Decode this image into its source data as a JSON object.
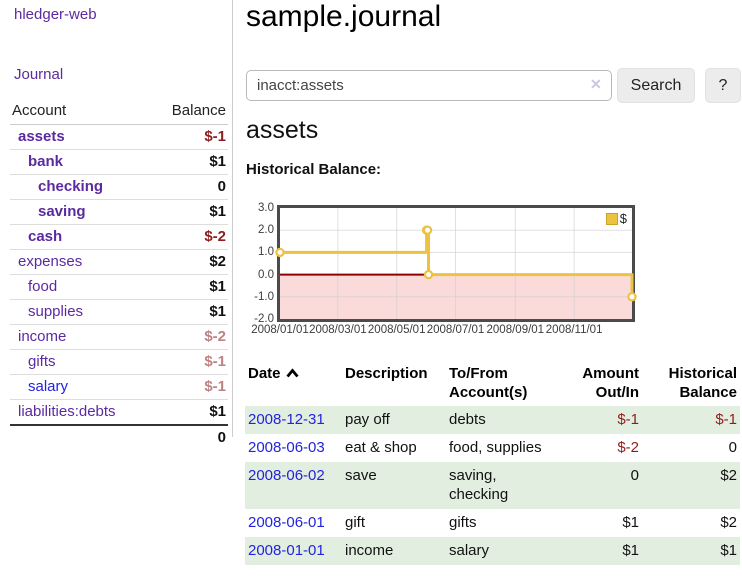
{
  "brand": "hledger-web",
  "nav": {
    "journal": "Journal"
  },
  "page": {
    "title": "sample.journal",
    "account_heading": "assets",
    "chart_label": "Historical Balance:"
  },
  "search": {
    "value": "inacct:assets",
    "clear_icon": "✕",
    "search_label": "Search",
    "help_label": "?"
  },
  "sidebar_table": {
    "header": {
      "account": "Account",
      "balance": "Balance"
    },
    "rows": [
      {
        "name": "assets",
        "balance": "$-1",
        "depth": 0,
        "bold": true,
        "balance_style": "negative"
      },
      {
        "name": "bank",
        "balance": "$1",
        "depth": 1,
        "bold": true,
        "balance_style": "normal"
      },
      {
        "name": "checking",
        "balance": "0",
        "depth": 2,
        "bold": true,
        "balance_style": "normal"
      },
      {
        "name": "saving",
        "balance": "$1",
        "depth": 2,
        "bold": true,
        "balance_style": "normal"
      },
      {
        "name": "cash",
        "balance": "$-2",
        "depth": 1,
        "bold": true,
        "balance_style": "negative"
      },
      {
        "name": "expenses",
        "balance": "$2",
        "depth": 0,
        "bold": false,
        "balance_style": "normal"
      },
      {
        "name": "food",
        "balance": "$1",
        "depth": 1,
        "bold": false,
        "balance_style": "normal"
      },
      {
        "name": "supplies",
        "balance": "$1",
        "depth": 1,
        "bold": false,
        "balance_style": "normal"
      },
      {
        "name": "income",
        "balance": "$-2",
        "depth": 0,
        "bold": false,
        "balance_style": "negative-muted"
      },
      {
        "name": "gifts",
        "balance": "$-1",
        "depth": 1,
        "bold": false,
        "balance_style": "negative-muted"
      },
      {
        "name": "salary",
        "balance": "$-1",
        "depth": 1,
        "bold": false,
        "balance_style": "negative-muted",
        "link_color": "blue"
      },
      {
        "name": "liabilities:debts",
        "balance": "$1",
        "depth": 0,
        "bold": false,
        "balance_style": "normal"
      }
    ],
    "total": "0"
  },
  "chart_data": {
    "type": "line",
    "step": true,
    "title": "Historical Balance",
    "series": [
      {
        "name": "$",
        "color": "#edc240",
        "points": [
          {
            "x": "2008-01-01",
            "y": 1
          },
          {
            "x": "2008-06-01",
            "y": 2
          },
          {
            "x": "2008-06-02",
            "y": 2
          },
          {
            "x": "2008-06-03",
            "y": 0
          },
          {
            "x": "2008-12-31",
            "y": -1
          }
        ]
      }
    ],
    "x_range": [
      "2008-01-01",
      "2008-12-31"
    ],
    "ylim": [
      -2,
      3
    ],
    "y_ticks": [
      {
        "value": 3,
        "label": "3.0"
      },
      {
        "value": 2,
        "label": "2.0"
      },
      {
        "value": 1,
        "label": "1.0"
      },
      {
        "value": 0,
        "label": "0.0"
      },
      {
        "value": -1,
        "label": "-1.0"
      },
      {
        "value": -2,
        "label": "-2.0"
      }
    ],
    "x_ticks": [
      {
        "date": "2008-01-01",
        "label": "2008/01/01"
      },
      {
        "date": "2008-03-01",
        "label": "2008/03/01"
      },
      {
        "date": "2008-05-01",
        "label": "2008/05/01"
      },
      {
        "date": "2008-07-01",
        "label": "2008/07/01"
      },
      {
        "date": "2008-09-01",
        "label": "2008/09/01"
      },
      {
        "date": "2008-11-01",
        "label": "2008/11/01"
      }
    ],
    "legend": {
      "position": "top-right",
      "entries": [
        {
          "label": "$",
          "color": "#edc240"
        }
      ]
    },
    "grid": true,
    "gridline_color": "#cfcfcf",
    "negative_region_color": "#fbdada",
    "zero_line_color": "#8b0000",
    "border_color": "#4b4b4b"
  },
  "register": {
    "columns": [
      {
        "line1": "Date",
        "line2": "",
        "align": "left",
        "sort": "asc"
      },
      {
        "line1": "Description",
        "line2": "",
        "align": "left"
      },
      {
        "line1": "To/From",
        "line2": "Account(s)",
        "align": "left"
      },
      {
        "line1": "Amount",
        "line2": "Out/In",
        "align": "right"
      },
      {
        "line1": "Historical",
        "line2": "Balance",
        "align": "right"
      }
    ],
    "rows": [
      {
        "date": "2008-12-31",
        "description": "pay off",
        "accounts": "debts",
        "amount": "$-1",
        "amount_negative": true,
        "balance": "$-1",
        "balance_negative": true
      },
      {
        "date": "2008-06-03",
        "description": "eat & shop",
        "accounts": "food, supplies",
        "amount": "$-2",
        "amount_negative": true,
        "balance": "0",
        "balance_negative": false
      },
      {
        "date": "2008-06-02",
        "description": "save",
        "accounts": "saving, checking",
        "amount": "0",
        "amount_negative": false,
        "balance": "$2",
        "balance_negative": false
      },
      {
        "date": "2008-06-01",
        "description": "gift",
        "accounts": "gifts",
        "amount": "$1",
        "amount_negative": false,
        "balance": "$2",
        "balance_negative": false
      },
      {
        "date": "2008-01-01",
        "description": "income",
        "accounts": "salary",
        "amount": "$1",
        "amount_negative": false,
        "balance": "$1",
        "balance_negative": false
      }
    ]
  },
  "colors": {
    "link_purple": "#5b2aa0",
    "link_blue": "#2323dd",
    "negative_red": "#8f1d1d",
    "negative_muted": "#bf8282",
    "row_stripe_green": "#e2efe0",
    "series_gold": "#edc240"
  }
}
